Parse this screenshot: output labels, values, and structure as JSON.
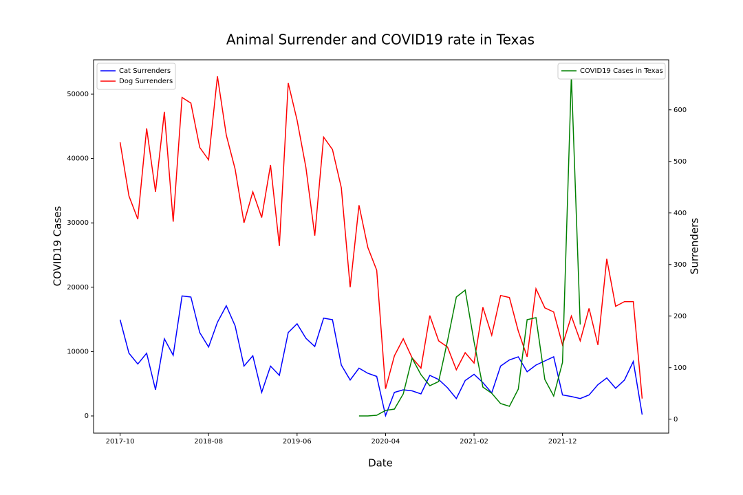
{
  "chart_data": {
    "type": "line",
    "title": "Animal Surrender and COVID19 rate in Texas",
    "xlabel": "Date",
    "ylabel": "COVID19 Cases",
    "ylabel_color": "green",
    "y2label": "Surrenders",
    "x": [
      "2017-10",
      "2017-11",
      "2017-12",
      "2018-01",
      "2018-02",
      "2018-03",
      "2018-04",
      "2018-05",
      "2018-06",
      "2018-07",
      "2018-08",
      "2018-09",
      "2018-10",
      "2018-11",
      "2018-12",
      "2019-01",
      "2019-02",
      "2019-03",
      "2019-04",
      "2019-05",
      "2019-06",
      "2019-07",
      "2019-08",
      "2019-09",
      "2019-10",
      "2019-11",
      "2019-12",
      "2020-01",
      "2020-02",
      "2020-03",
      "2020-04",
      "2020-05",
      "2020-06",
      "2020-07",
      "2020-08",
      "2020-09",
      "2020-10",
      "2020-11",
      "2020-12",
      "2021-01",
      "2021-02",
      "2021-03",
      "2021-04",
      "2021-05",
      "2021-06",
      "2021-07",
      "2021-08",
      "2021-09",
      "2021-10",
      "2021-11",
      "2021-12",
      "2022-01",
      "2022-02",
      "2022-03",
      "2022-04",
      "2022-05",
      "2022-06",
      "2022-07",
      "2022-08",
      "2022-09"
    ],
    "xlim": [
      "2017-07",
      "2022-12"
    ],
    "xticks": [
      "2017-10",
      "2018-08",
      "2019-06",
      "2020-04",
      "2021-02",
      "2021-12"
    ],
    "ylim": [
      -2670,
      55340
    ],
    "yticks": [
      0,
      10000,
      20000,
      30000,
      40000,
      50000
    ],
    "y2lim": [
      -27,
      697
    ],
    "y2ticks": [
      0,
      100,
      200,
      300,
      400,
      500,
      600
    ],
    "legend": {
      "y2": "upper left",
      "y": "upper right"
    },
    "series": [
      {
        "name": "Cat Surrenders",
        "color": "blue",
        "axis": "y2",
        "values": [
          193,
          128,
          107,
          128,
          57,
          156,
          124,
          239,
          237,
          168,
          140,
          188,
          220,
          181,
          103,
          123,
          52,
          103,
          85,
          168,
          185,
          157,
          141,
          196,
          193,
          105,
          76,
          99,
          89,
          83,
          7,
          52,
          57,
          55,
          49,
          85,
          77,
          61,
          40,
          75,
          87,
          71,
          51,
          103,
          115,
          121,
          92,
          105,
          113,
          121,
          47,
          44,
          40,
          47,
          67,
          80,
          60,
          76,
          112,
          9
        ]
      },
      {
        "name": "Dog Surrenders",
        "color": "red",
        "axis": "y2",
        "values": [
          537,
          433,
          388,
          564,
          441,
          596,
          383,
          624,
          613,
          527,
          503,
          665,
          551,
          485,
          381,
          441,
          391,
          493,
          336,
          652,
          580,
          488,
          356,
          547,
          523,
          449,
          256,
          415,
          333,
          289,
          59,
          123,
          156,
          119,
          99,
          201,
          152,
          140,
          96,
          129,
          109,
          217,
          163,
          240,
          236,
          171,
          121,
          253,
          216,
          208,
          144,
          200,
          152,
          215,
          144,
          311,
          219,
          228,
          228,
          40
        ]
      },
      {
        "name": "COVID19 Cases in Texas",
        "color": "green",
        "axis": "y",
        "values": [
          null,
          null,
          null,
          null,
          null,
          null,
          null,
          null,
          null,
          null,
          null,
          null,
          null,
          null,
          null,
          null,
          null,
          null,
          null,
          null,
          null,
          null,
          null,
          null,
          null,
          null,
          null,
          0,
          0,
          107,
          855,
          1068,
          3419,
          8974,
          6410,
          4700,
          5342,
          11645,
          18483,
          19551,
          11538,
          4487,
          3526,
          1923,
          1496,
          4167,
          14957,
          15278,
          5662,
          3098,
          8333,
          52885,
          14209,
          null,
          null,
          null,
          null,
          null,
          null,
          null
        ]
      }
    ]
  }
}
